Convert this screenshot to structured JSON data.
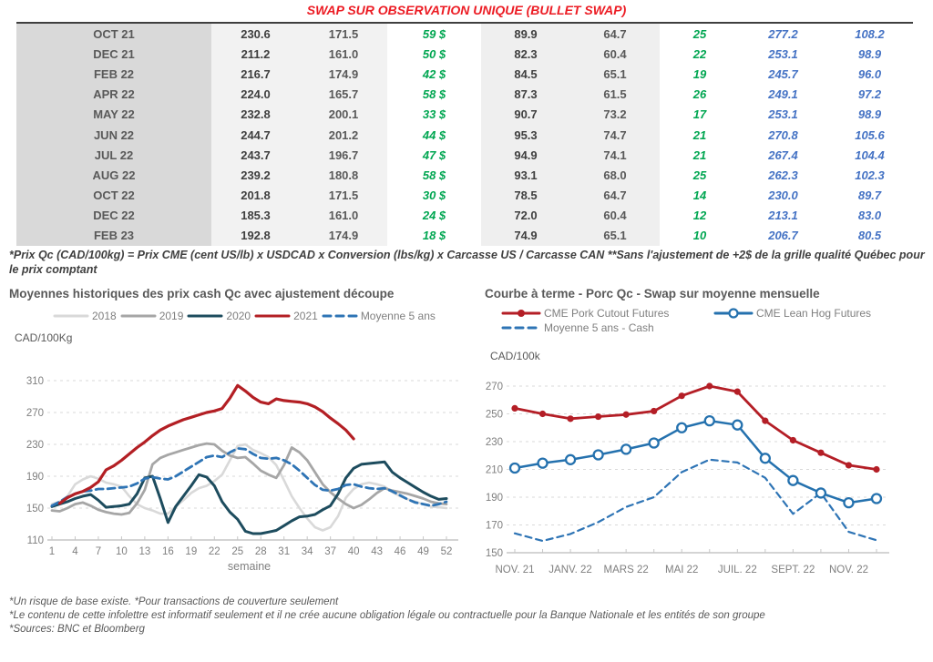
{
  "page": {
    "title": "SWAP SUR OBSERVATION UNIQUE (BULLET SWAP)"
  },
  "colors": {
    "red": "#ec1c24",
    "green": "#00a651",
    "blue": "#4472c4",
    "series_2018": "#d9d9d9",
    "series_2019": "#a6a6a6",
    "series_2020": "#1d4c5e",
    "series_2021": "#b31f24",
    "series_moyenne": "#2e74b5",
    "tick_gray": "#7f7f7f"
  },
  "table": {
    "rows": [
      {
        "cells": [
          "OCT 21",
          "230.6",
          "171.5",
          "59 $",
          "89.9",
          "64.7",
          "25",
          "277.2",
          "108.2"
        ]
      },
      {
        "cells": [
          "DEC 21",
          "211.2",
          "161.0",
          "50 $",
          "82.3",
          "60.4",
          "22",
          "253.1",
          "98.9"
        ]
      },
      {
        "cells": [
          "FEB 22",
          "216.7",
          "174.9",
          "42 $",
          "84.5",
          "65.1",
          "19",
          "245.7",
          "96.0"
        ]
      },
      {
        "cells": [
          "APR 22",
          "224.0",
          "165.7",
          "58 $",
          "87.3",
          "61.5",
          "26",
          "249.1",
          "97.2"
        ]
      },
      {
        "cells": [
          "MAY 22",
          "232.8",
          "200.1",
          "33 $",
          "90.7",
          "73.2",
          "17",
          "253.1",
          "98.9"
        ]
      },
      {
        "cells": [
          "JUN 22",
          "244.7",
          "201.2",
          "44 $",
          "95.3",
          "74.7",
          "21",
          "270.8",
          "105.6"
        ]
      },
      {
        "cells": [
          "JUL 22",
          "243.7",
          "196.7",
          "47 $",
          "94.9",
          "74.1",
          "21",
          "267.4",
          "104.4"
        ]
      },
      {
        "cells": [
          "AUG 22",
          "239.2",
          "180.8",
          "58 $",
          "93.1",
          "68.0",
          "25",
          "262.3",
          "102.3"
        ]
      },
      {
        "cells": [
          "OCT 22",
          "201.8",
          "171.5",
          "30 $",
          "78.5",
          "64.7",
          "14",
          "230.0",
          "89.7"
        ]
      },
      {
        "cells": [
          "DEC 22",
          "185.3",
          "161.0",
          "24 $",
          "72.0",
          "60.4",
          "12",
          "213.1",
          "83.0"
        ]
      },
      {
        "cells": [
          "FEB 23",
          "192.8",
          "174.9",
          "18 $",
          "74.9",
          "65.1",
          "10",
          "206.7",
          "80.5"
        ]
      }
    ],
    "footnote": "*Prix Qc (CAD/100kg) = Prix CME (cent US/lb) x USDCAD x Conversion (lbs/kg) x Carcasse US / Carcasse CAN **Sans l'ajustement de +2$ de la grille qualité Québec pour le prix comptant"
  },
  "chart_data": [
    {
      "type": "line",
      "title": "Moyennes historiques des prix cash Qc avec ajustement découpe",
      "ylabel": "CAD/100Kg",
      "xlabel": "semaine",
      "ylim": [
        110,
        310
      ],
      "yticks": [
        110,
        150,
        190,
        230,
        270,
        310
      ],
      "n_points": 52,
      "grid": "horizontal-dashed",
      "legend_position": "top",
      "xticks": [
        {
          "i": 0,
          "label": "1"
        },
        {
          "i": 3,
          "label": "4"
        },
        {
          "i": 6,
          "label": "7"
        },
        {
          "i": 9,
          "label": "10"
        },
        {
          "i": 12,
          "label": "13"
        },
        {
          "i": 15,
          "label": "16"
        },
        {
          "i": 18,
          "label": "19"
        },
        {
          "i": 21,
          "label": "22"
        },
        {
          "i": 24,
          "label": "25"
        },
        {
          "i": 27,
          "label": "28"
        },
        {
          "i": 30,
          "label": "31"
        },
        {
          "i": 33,
          "label": "34"
        },
        {
          "i": 36,
          "label": "37"
        },
        {
          "i": 39,
          "label": "40"
        },
        {
          "i": 42,
          "label": "43"
        },
        {
          "i": 45,
          "label": "46"
        },
        {
          "i": 48,
          "label": "49"
        },
        {
          "i": 51,
          "label": "52"
        }
      ],
      "series": [
        {
          "name": "2018",
          "color": "#d9d9d9",
          "width": 2.6,
          "values": [
            155,
            158,
            165,
            180,
            186,
            190,
            187,
            182,
            180,
            177,
            165,
            155,
            150,
            147,
            143,
            143,
            152,
            160,
            169,
            175,
            178,
            184,
            192,
            210,
            228,
            230,
            223,
            219,
            214,
            204,
            185,
            165,
            150,
            137,
            126,
            122,
            126,
            140,
            163,
            174,
            180,
            182,
            180,
            177,
            170,
            165,
            161,
            158,
            155,
            152,
            151,
            150
          ]
        },
        {
          "name": "2019",
          "color": "#a6a6a6",
          "width": 2.8,
          "values": [
            147,
            146,
            150,
            155,
            157,
            153,
            148,
            145,
            143,
            142,
            144,
            156,
            173,
            205,
            213,
            217,
            220,
            223,
            226,
            229,
            231,
            230,
            222,
            216,
            213,
            214,
            206,
            197,
            192,
            188,
            204,
            226,
            220,
            210,
            195,
            180,
            170,
            162,
            155,
            150,
            154,
            161,
            169,
            175,
            172,
            170,
            168,
            165,
            162,
            158,
            156,
            155
          ]
        },
        {
          "name": "2020",
          "color": "#1d4c5e",
          "width": 3,
          "values": [
            152,
            155,
            158,
            162,
            165,
            167,
            160,
            151,
            152,
            153,
            155,
            168,
            188,
            190,
            162,
            132,
            152,
            165,
            178,
            192,
            189,
            178,
            158,
            145,
            136,
            121,
            118,
            118,
            120,
            122,
            128,
            134,
            139,
            140,
            142,
            148,
            153,
            168,
            188,
            200,
            205,
            206,
            207,
            208,
            195,
            188,
            182,
            176,
            170,
            165,
            161,
            162
          ]
        },
        {
          "name": "Moyenne 5 ans",
          "color": "#2e74b5",
          "width": 2.8,
          "dash": [
            8,
            5
          ],
          "values": [
            153,
            158,
            164,
            168,
            171,
            172,
            174,
            174,
            175,
            176,
            177,
            181,
            187,
            189,
            187,
            186,
            190,
            196,
            202,
            208,
            214,
            216,
            214,
            220,
            225,
            224,
            218,
            213,
            212,
            213,
            210,
            205,
            197,
            188,
            179,
            173,
            172,
            174,
            179,
            180,
            177,
            175,
            174,
            175,
            171,
            166,
            161,
            157,
            155,
            153,
            155,
            158
          ]
        },
        {
          "name": "2021",
          "color": "#b31f24",
          "width": 3.2,
          "values": [
            null,
            156,
            163,
            168,
            171,
            176,
            183,
            198,
            203,
            210,
            218,
            226,
            233,
            241,
            248,
            253,
            257,
            261,
            264,
            267,
            270,
            272,
            275,
            288,
            304,
            297,
            289,
            283,
            281,
            287,
            285,
            284,
            283,
            281,
            277,
            271,
            263,
            256,
            248,
            237,
            null,
            null,
            null,
            null,
            null,
            null,
            null,
            null,
            null,
            null,
            null,
            null
          ]
        }
      ],
      "legend_order": [
        "2018",
        "2019",
        "2020",
        "2021",
        "Moyenne 5 ans"
      ]
    },
    {
      "type": "line",
      "title": "Courbe à terme - Porc Qc - Swap sur moyenne mensuelle",
      "ylabel": "CAD/100k",
      "xlabel": "",
      "ylim": [
        150,
        270
      ],
      "yticks": [
        150,
        170,
        190,
        210,
        230,
        250,
        270
      ],
      "n_points": 14,
      "grid": "horizontal-dashed",
      "legend_position": "top",
      "xticks": [
        {
          "i": 0,
          "label": "NOV. 21"
        },
        {
          "i": 2,
          "label": "JANV. 22"
        },
        {
          "i": 4,
          "label": "MARS 22"
        },
        {
          "i": 6,
          "label": "MAI 22"
        },
        {
          "i": 8,
          "label": "JUIL. 22"
        },
        {
          "i": 10,
          "label": "SEPT. 22"
        },
        {
          "i": 12,
          "label": "NOV. 22"
        }
      ],
      "series": [
        {
          "name": "Moyenne 5 ans - Cash",
          "color": "#2e74b5",
          "width": 2.2,
          "dash": [
            7,
            5
          ],
          "values": [
            164,
            158.5,
            163.5,
            172,
            183,
            190,
            208,
            217,
            215,
            204,
            178,
            193,
            165,
            159
          ]
        },
        {
          "name": "CME Lean Hog Futures",
          "color": "#2471ae",
          "width": 2.5,
          "marker": "open-circle",
          "values": [
            211,
            214.5,
            217,
            220.5,
            224.5,
            229,
            240,
            245,
            242,
            218,
            202,
            193,
            186,
            189
          ]
        },
        {
          "name": "CME Pork Cutout Futures",
          "color": "#b41e26",
          "width": 2.8,
          "marker": "filled-circle",
          "values": [
            254,
            250,
            246.5,
            248,
            249.5,
            252,
            263,
            270,
            266,
            245,
            231,
            222,
            213,
            210
          ]
        }
      ],
      "legend_order": [
        "CME Pork Cutout Futures",
        "CME Lean Hog Futures",
        "Moyenne 5 ans - Cash"
      ]
    }
  ],
  "footer": {
    "lines": [
      "*Un risque de base existe. *Pour transactions de couverture seulement",
      "*Le contenu de cette infolettre est informatif seulement et il ne crée aucune obligation légale ou contractuelle pour la Banque Nationale et les entités de son groupe",
      "*Sources: BNC et Bloomberg"
    ]
  }
}
